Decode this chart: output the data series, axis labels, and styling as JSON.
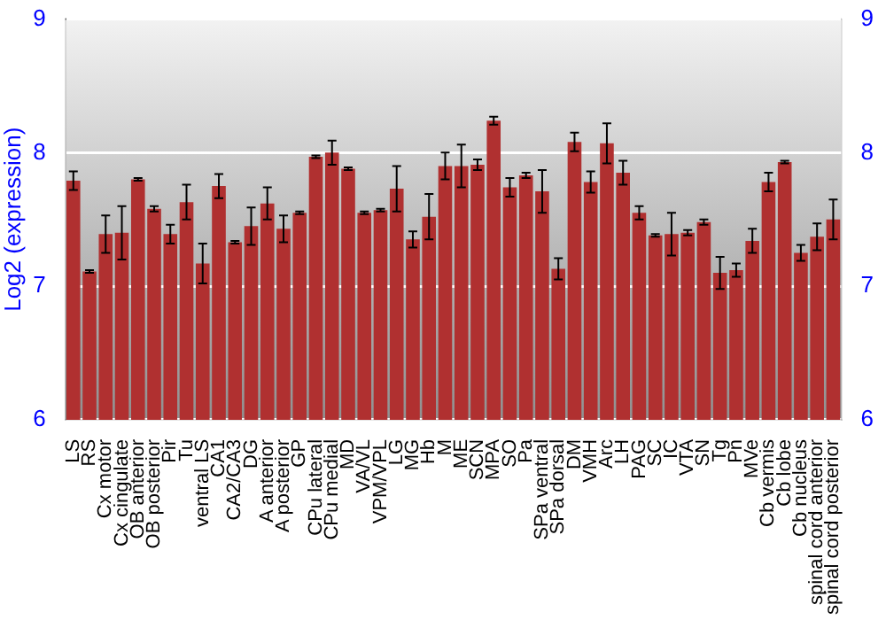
{
  "chart_data": {
    "type": "bar",
    "ylabel": "Log2 (expression)",
    "categories": [
      "LS",
      "RS",
      "Cx motor",
      "Cx cingulate",
      "OB anterior",
      "OB posterior",
      "Pir",
      "Tu",
      "ventral LS",
      "CA1",
      "CA2/CA3",
      "DG",
      "A anterior",
      "A posterior",
      "GP",
      "CPu lateral",
      "CPu medial",
      "MD",
      "VA/VL",
      "VPM/VPL",
      "LG",
      "MG",
      "Hb",
      "M",
      "ME",
      "SCN",
      "MPA",
      "SO",
      "Pa",
      "SPa ventral",
      "SPa dorsal",
      "DM",
      "VMH",
      "Arc",
      "LH",
      "PAG",
      "SC",
      "IC",
      "VTA",
      "SN",
      "Tg",
      "Pn",
      "MVe",
      "Cb vermis",
      "Cb lobe",
      "Cb nucleus",
      "spinal cord anterior",
      "spinal cord posterior"
    ],
    "values": [
      7.79,
      7.11,
      7.39,
      7.4,
      7.8,
      7.58,
      7.39,
      7.63,
      7.17,
      7.75,
      7.33,
      7.45,
      7.62,
      7.43,
      7.55,
      7.97,
      8.0,
      7.88,
      7.55,
      7.57,
      7.73,
      7.35,
      7.52,
      7.9,
      7.9,
      7.91,
      8.24,
      7.74,
      7.83,
      7.71,
      7.13,
      8.08,
      7.78,
      8.07,
      7.85,
      7.55,
      7.38,
      7.39,
      7.4,
      7.48,
      7.1,
      7.12,
      7.34,
      7.78,
      7.93,
      7.25,
      7.37,
      7.5
    ],
    "errors": [
      0.07,
      0.01,
      0.14,
      0.2,
      0.01,
      0.02,
      0.07,
      0.13,
      0.15,
      0.09,
      0.01,
      0.14,
      0.12,
      0.1,
      0.01,
      0.01,
      0.09,
      0.01,
      0.01,
      0.01,
      0.17,
      0.06,
      0.17,
      0.1,
      0.16,
      0.04,
      0.03,
      0.07,
      0.02,
      0.16,
      0.08,
      0.07,
      0.08,
      0.15,
      0.09,
      0.05,
      0.01,
      0.16,
      0.02,
      0.02,
      0.12,
      0.05,
      0.09,
      0.07,
      0.01,
      0.06,
      0.1,
      0.15
    ],
    "color": "#b03030",
    "ylim": [
      6,
      9
    ],
    "yticks": [
      6,
      7,
      8,
      9
    ],
    "y2lim": [
      6,
      9
    ],
    "y2ticks": [
      6,
      7,
      8,
      9
    ],
    "grid": "y",
    "legend": false
  }
}
